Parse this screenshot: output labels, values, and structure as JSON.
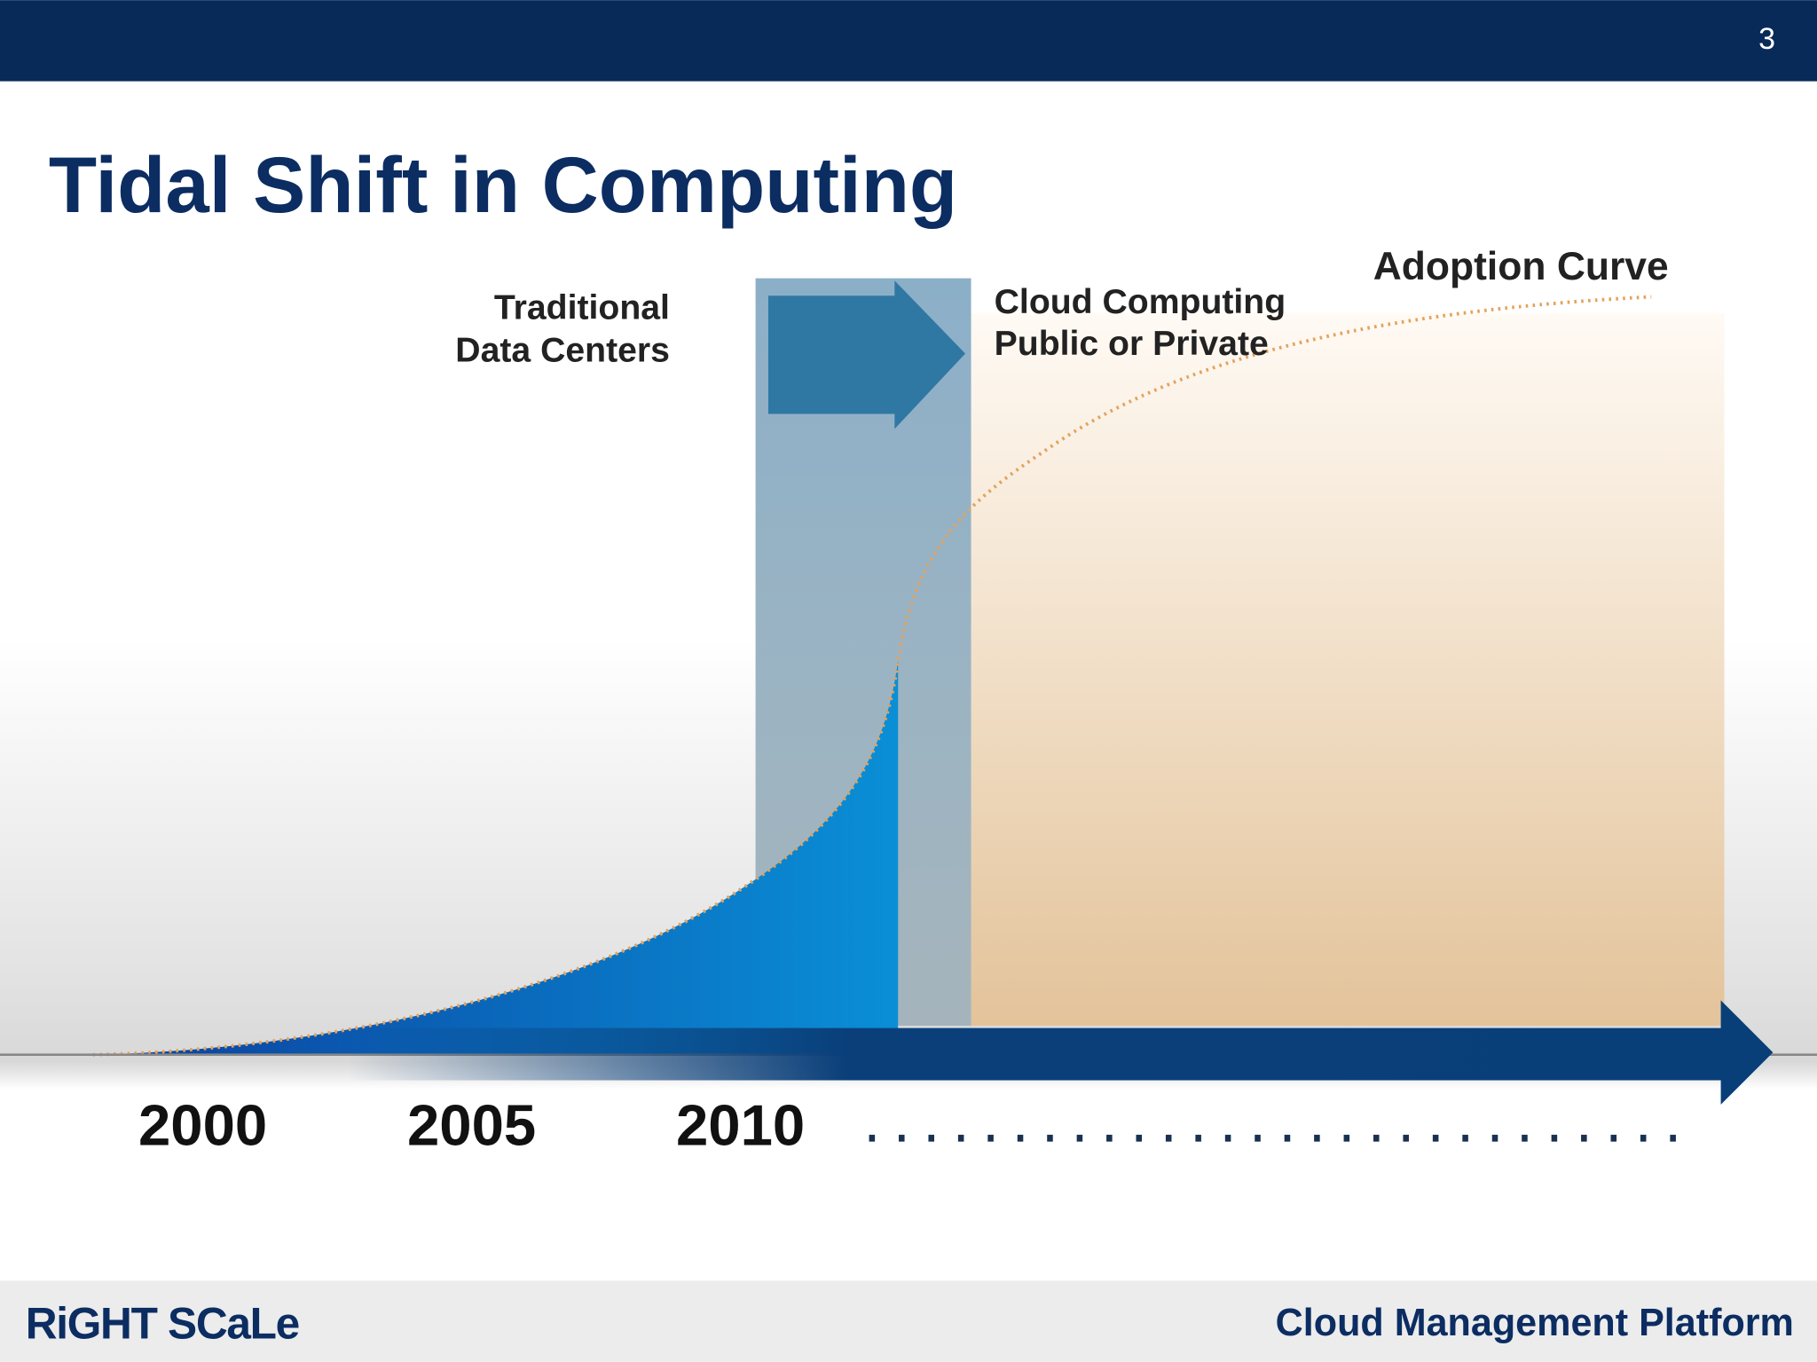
{
  "slide_number": "3",
  "title": "Tidal Shift in Computing",
  "labels": {
    "traditional": [
      "Traditional",
      "Data Centers"
    ],
    "cloud": [
      "Cloud Computing",
      "Public or Private"
    ],
    "adoption": "Adoption Curve"
  },
  "years": [
    "2000",
    "2005",
    "2010"
  ],
  "footer": {
    "brand": "RiGHT SCaLe",
    "tagline": "Cloud Management Platform"
  }
}
